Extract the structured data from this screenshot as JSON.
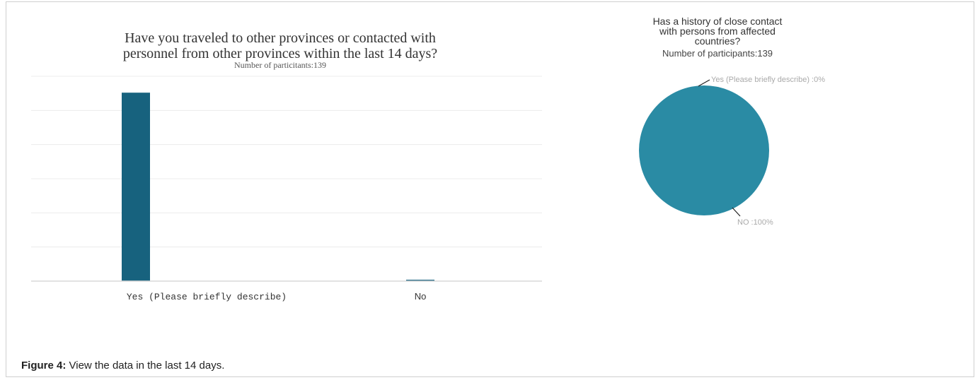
{
  "bar_chart": {
    "title_line1": "Have you traveled to other provinces or contacted with",
    "title_line2": "personnel from other provinces within the last 14 days?",
    "subtitle": "Number of particitants:139"
  },
  "pie_chart": {
    "title_line1": "Has a history of close contact",
    "title_line2": "with persons from affected",
    "title_line3": "countries?",
    "subtitle": "Number of participants:139"
  },
  "caption": {
    "label": "Figure 4:",
    "text": " View the data in the last 14 days."
  },
  "colors": {
    "bar": "#17627e",
    "pie": "#2a8ba4",
    "grid": "#ececec"
  },
  "chart_data": [
    {
      "type": "bar",
      "title": "Have you traveled to other provinces or contacted with personnel from other provinces within the last 14 days?",
      "subtitle": "Number of particitants:139",
      "categories": [
        "Yes (Please briefly describe)",
        "No"
      ],
      "values": [
        138,
        1
      ],
      "ylim": [
        0,
        150
      ],
      "grid": true
    },
    {
      "type": "pie",
      "title": "Has a history of close contact with persons from affected countries?",
      "subtitle": "Number of participants:139",
      "labels": [
        "Yes (Please briefly describe)",
        "NO"
      ],
      "values": [
        0,
        100
      ],
      "slice_labels": [
        "Yes (Please briefly describe) :0%",
        "NO :100%"
      ]
    }
  ]
}
